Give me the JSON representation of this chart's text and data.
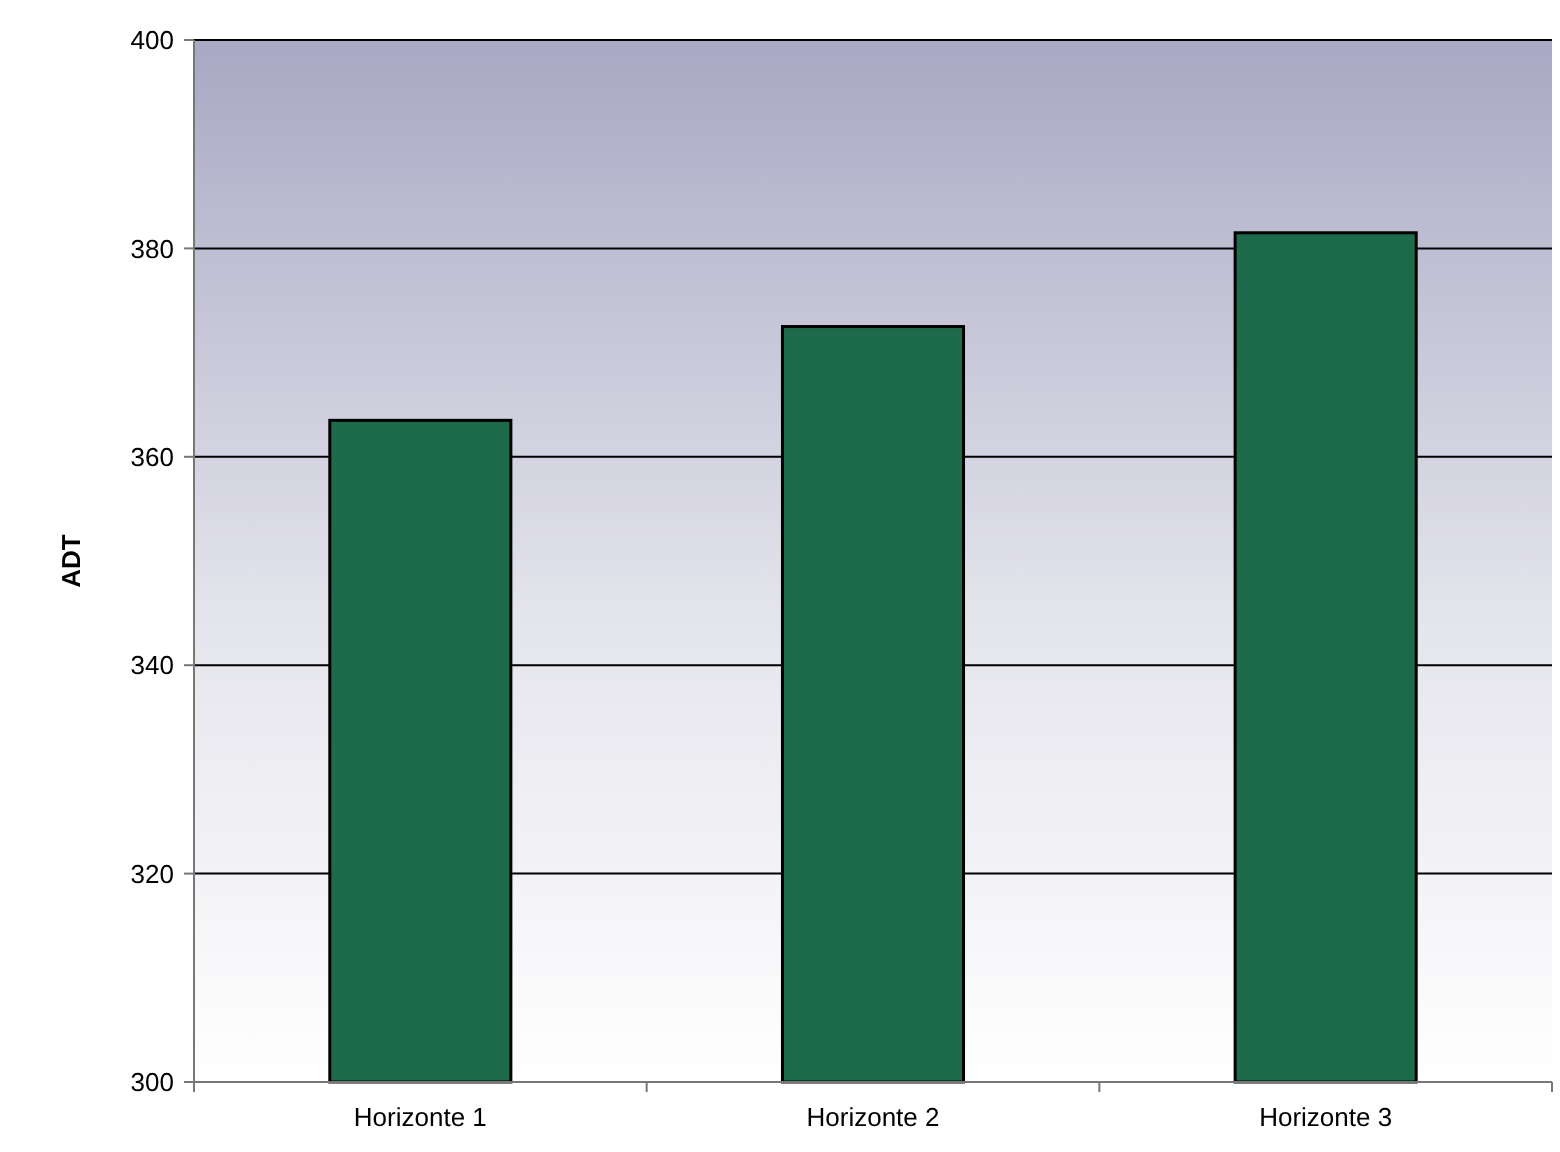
{
  "chart_data": {
    "type": "bar",
    "ylabel": "ADT",
    "categories": [
      "Horizonte 1",
      "Horizonte 2",
      "Horizonte 3"
    ],
    "values": [
      363.5,
      372.5,
      381.5
    ],
    "color": "#1e6b4c",
    "ylim": [
      300,
      400
    ],
    "yticks": [
      300,
      320,
      340,
      360,
      380,
      400
    ],
    "grid": "y"
  }
}
